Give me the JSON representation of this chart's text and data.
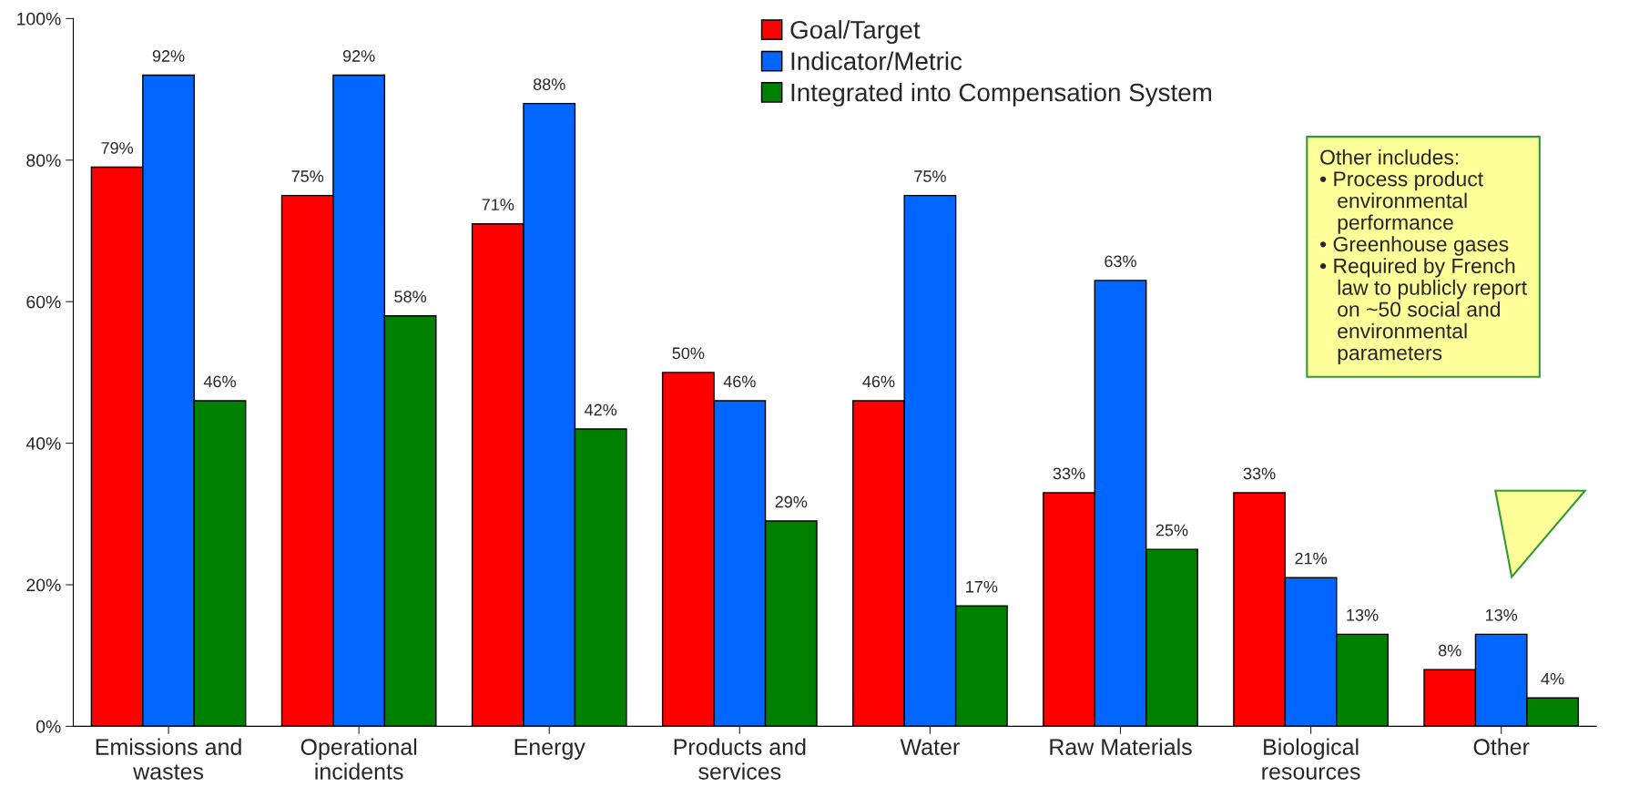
{
  "chart_data": {
    "type": "bar",
    "categories": [
      "Emissions and\nwastes",
      "Operational\nincidents",
      "Energy",
      "Products and\nservices",
      "Water",
      "Raw Materials",
      "Biological\nresources",
      "Other"
    ],
    "series": [
      {
        "name": "Goal/Target",
        "color": "#ff0000",
        "values": [
          79,
          75,
          71,
          50,
          46,
          33,
          33,
          8
        ],
        "value_labels": [
          "79%",
          "75%",
          "71%",
          "50%",
          "46%",
          "33%",
          "33%",
          "8%"
        ]
      },
      {
        "name": "Indicator/Metric",
        "color": "#0066ff",
        "values": [
          92,
          92,
          88,
          46,
          75,
          63,
          21,
          13
        ],
        "value_labels": [
          "92%",
          "92%",
          "88%",
          "46%",
          "75%",
          "63%",
          "21%",
          "13%"
        ]
      },
      {
        "name": "Integrated into Compensation System",
        "color": "#008000",
        "values": [
          46,
          58,
          42,
          29,
          17,
          25,
          13,
          4
        ],
        "value_labels": [
          "46%",
          "58%",
          "42%",
          "29%",
          "17%",
          "25%",
          "13%",
          "4%"
        ]
      }
    ],
    "ylim": [
      0,
      100
    ],
    "yticks": [
      {
        "value": 0,
        "label": "0%"
      },
      {
        "value": 20,
        "label": "20%"
      },
      {
        "value": 40,
        "label": "40%"
      },
      {
        "value": 60,
        "label": "60%"
      },
      {
        "value": 80,
        "label": "80%"
      },
      {
        "value": 100,
        "label": "100%"
      }
    ],
    "grid": false,
    "legend": "top",
    "annotations": [
      "Other includes:\n• Process product\n   environmental\n   performance\n• Greenhouse gases\n• Required by French\n   law to publicly report\n   on ~50 social and\n   environmental\n   parameters"
    ]
  }
}
